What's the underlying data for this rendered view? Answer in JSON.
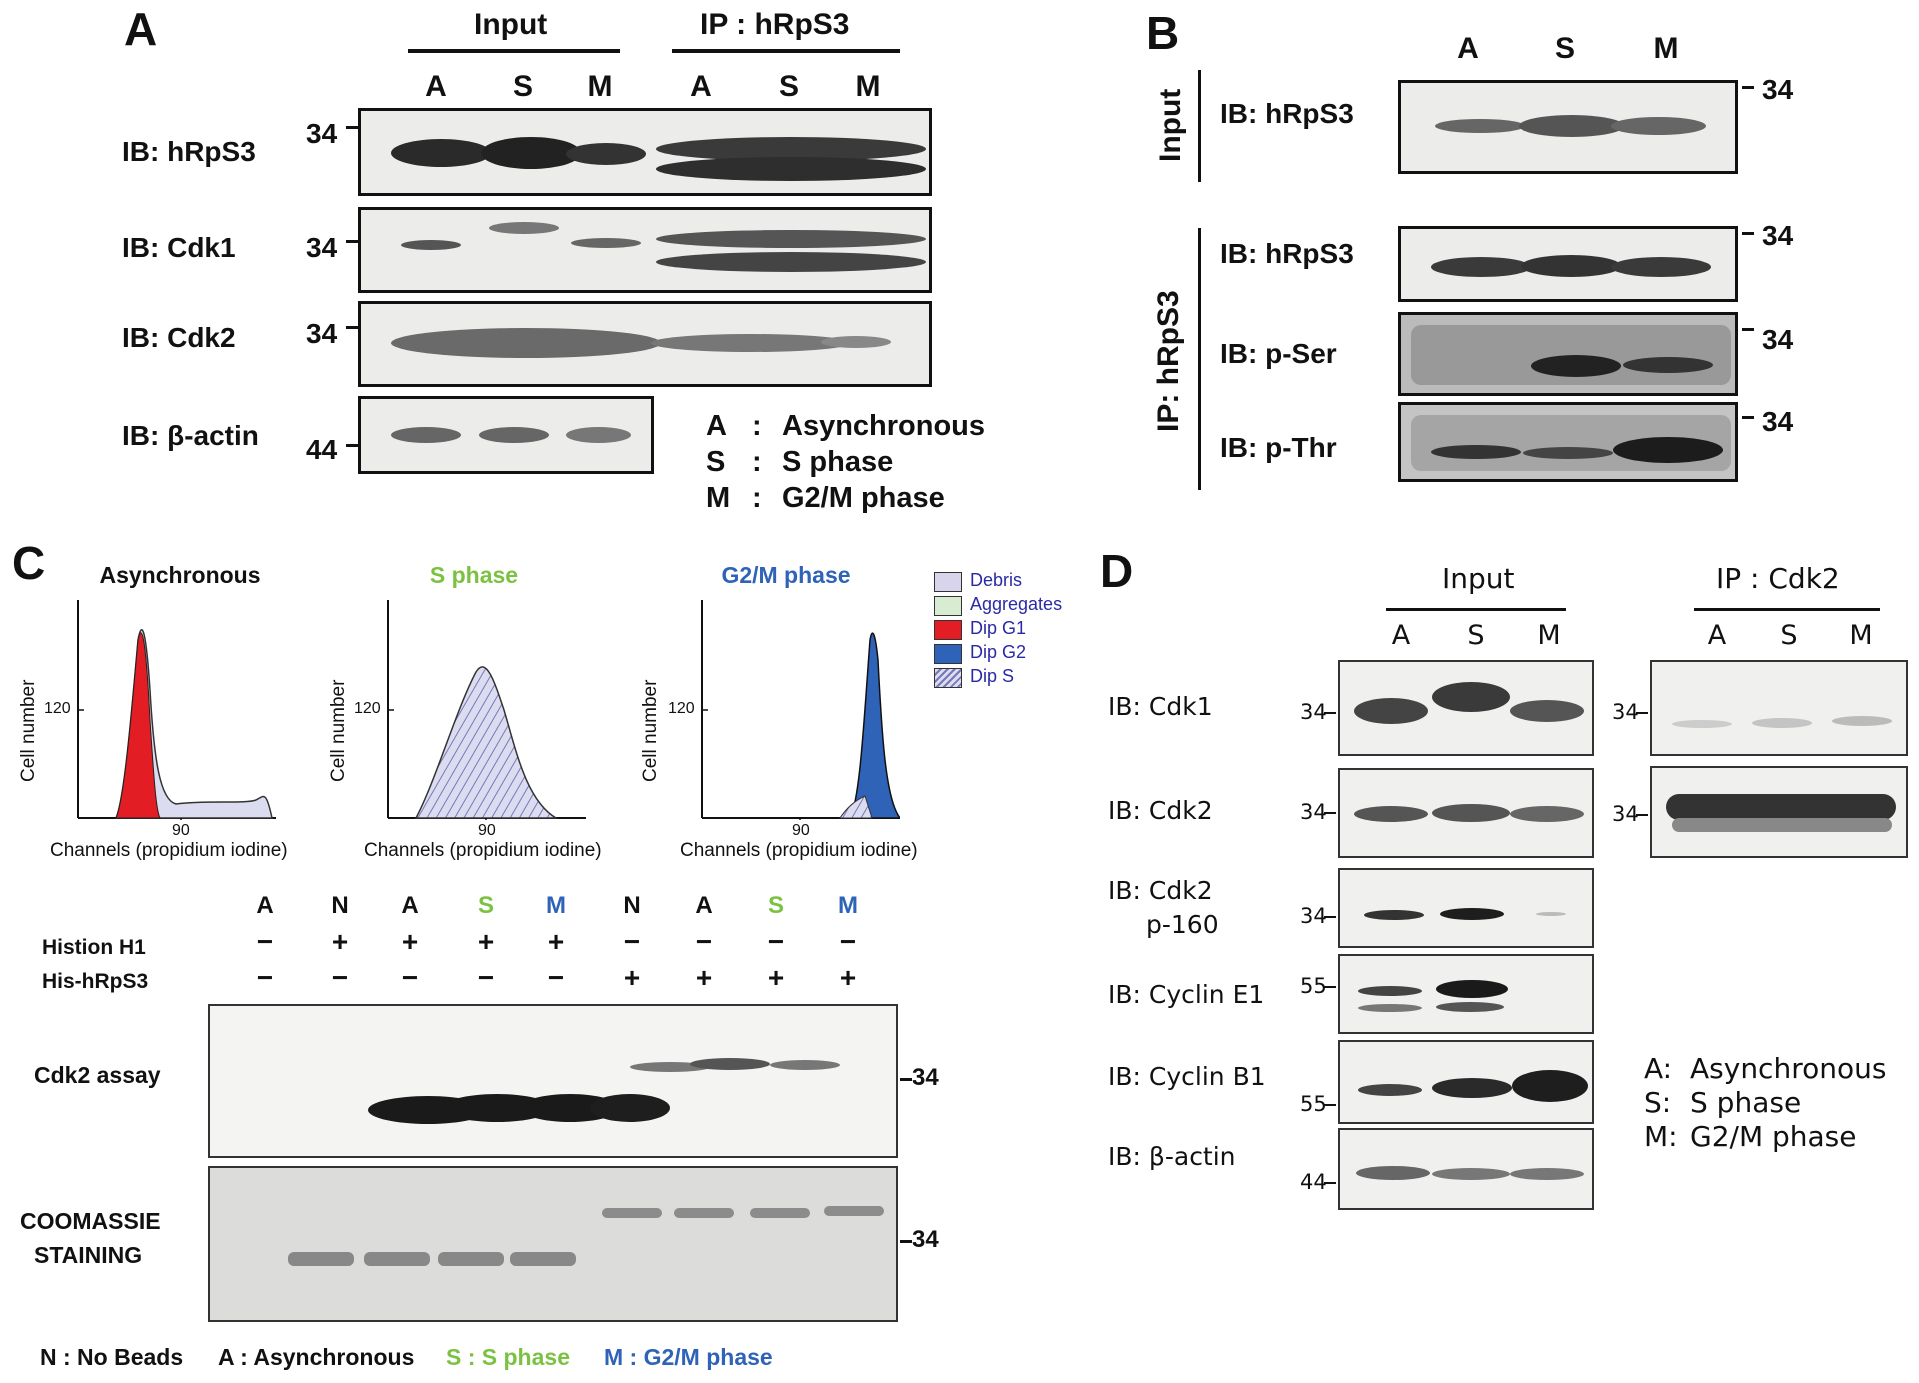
{
  "colors": {
    "green": "#7cc242",
    "blue": "#2f63b7",
    "red": "#e21d24",
    "legend_text": "#2a2aa6"
  },
  "panelA": {
    "letter": "A",
    "input_header": "Input",
    "ip_header": "IP : hRpS3",
    "lanes": [
      "A",
      "S",
      "M",
      "A",
      "S",
      "M"
    ],
    "rows": [
      {
        "label": "IB: hRpS3",
        "mw": "34"
      },
      {
        "label": "IB: Cdk1",
        "mw": "34"
      },
      {
        "label": "IB: Cdk2",
        "mw": "34"
      },
      {
        "label": "IB: β-actin",
        "mw": "44"
      }
    ],
    "legend": [
      {
        "key": "A",
        "sep": ":",
        "text": "Asynchronous"
      },
      {
        "key": "S",
        "sep": ":",
        "text": "S phase"
      },
      {
        "key": "M",
        "sep": ":",
        "text": "G2/M phase"
      }
    ]
  },
  "panelB": {
    "letter": "B",
    "lanes": [
      "A",
      "S",
      "M"
    ],
    "input_label": "Input",
    "ip_label": "IP: hRpS3",
    "rows": [
      {
        "label": "IB: hRpS3",
        "mw": "34"
      },
      {
        "label": "IB: hRpS3",
        "mw": "34"
      },
      {
        "label": "IB: p-Ser",
        "mw": "34"
      },
      {
        "label": "IB: p-Thr",
        "mw": "34"
      }
    ]
  },
  "panelC": {
    "letter": "C",
    "flow": [
      {
        "title": "Asynchronous",
        "ylabel": "Cell number",
        "ytick": "120",
        "xtick": "90",
        "xlabel": "Channels (propidium iodine)"
      },
      {
        "title": "S phase",
        "ylabel": "Cell number",
        "ytick": "120",
        "xtick": "90",
        "xlabel": "Channels (propidium iodine)"
      },
      {
        "title": "G2/M  phase",
        "ylabel": "Cell number",
        "ytick": "120",
        "xtick": "90",
        "xlabel": "Channels (propidium iodine)"
      }
    ],
    "flow_legend": [
      "Debris",
      "Aggregates",
      "Dip G1",
      "Dip G2",
      "Dip S"
    ],
    "lanes": [
      "A",
      "N",
      "A",
      "S",
      "M",
      "N",
      "A",
      "S",
      "M"
    ],
    "histone_label": "Histion H1",
    "histone_signs": [
      "−",
      "+",
      "+",
      "+",
      "+",
      "−",
      "−",
      "−",
      "−"
    ],
    "his_label": "His-hRpS3",
    "his_signs": [
      "−",
      "−",
      "−",
      "−",
      "−",
      "+",
      "+",
      "+",
      "+"
    ],
    "assay_label": "Cdk2 assay",
    "coomassie_label_1": "COOMASSIE",
    "coomassie_label_2": "STAINING",
    "mw": "34",
    "footer": [
      {
        "text": "N : No Beads",
        "color": "black"
      },
      {
        "text": "A :  Asynchronous",
        "color": "black"
      },
      {
        "text": "S :  S phase",
        "color": "green"
      },
      {
        "text": "M : G2/M phase",
        "color": "blue"
      }
    ]
  },
  "panelD": {
    "letter": "D",
    "input_header": "Input",
    "ip_header": "IP : Cdk2",
    "lanes": [
      "A",
      "S",
      "M"
    ],
    "rows": [
      {
        "label": "IB: Cdk1",
        "label2": "",
        "mw": "34"
      },
      {
        "label": "IB: Cdk2",
        "label2": "",
        "mw": "34"
      },
      {
        "label": "IB: Cdk2",
        "label2": "p-160",
        "mw": "34"
      },
      {
        "label": "IB: Cyclin E1",
        "label2": "",
        "mw": "55"
      },
      {
        "label": "IB: Cyclin B1",
        "label2": "",
        "mw": "55"
      },
      {
        "label": "IB: β-actin",
        "label2": "",
        "mw": "44"
      }
    ],
    "ip_mw": [
      "34",
      "34"
    ],
    "legend": [
      {
        "key": "A:",
        "text": "Asynchronous"
      },
      {
        "key": "S:",
        "text": "S phase"
      },
      {
        "key": "M:",
        "text": "G2/M phase"
      }
    ]
  }
}
